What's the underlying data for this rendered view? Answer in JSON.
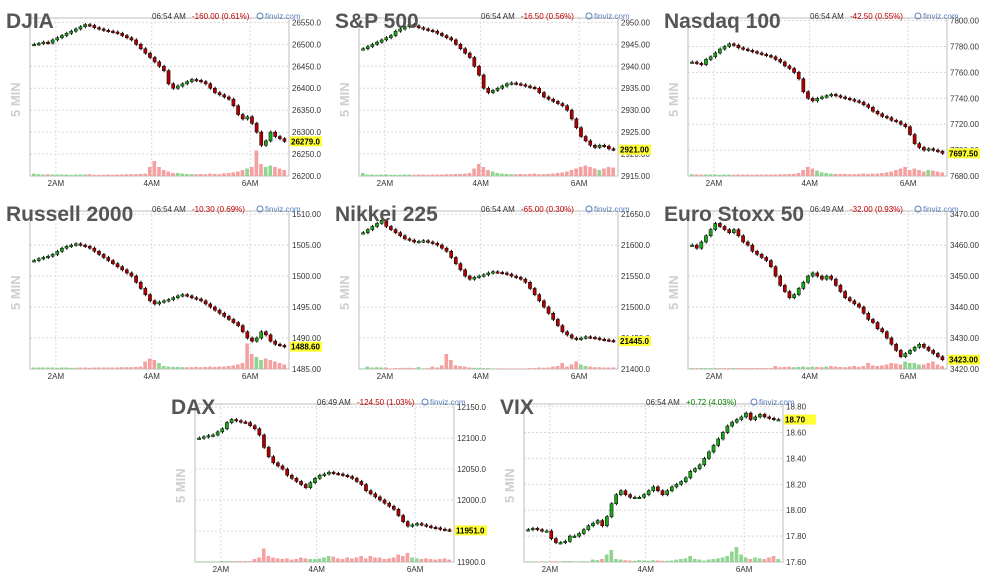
{
  "panels": [
    {
      "id": "djia",
      "title": "DJIA",
      "time": "06:54 AM",
      "change": "-160.00 (0.61%)",
      "change_dir": "neg",
      "source": "finviz.com",
      "interval": "5 MIN",
      "last_label": "26279.0",
      "colors": {
        "up": "#1aa81a",
        "down": "#b00000",
        "vol_up": "#8fd48f",
        "vol_down": "#f5a0a0",
        "last_bg": "#ffff33"
      }
    },
    {
      "id": "sp500",
      "title": "S&P 500",
      "time": "06:54 AM",
      "change": "-16.50 (0.56%)",
      "change_dir": "neg",
      "source": "finviz.com",
      "interval": "5 MIN",
      "last_label": "2921.00"
    },
    {
      "id": "nasdaq100",
      "title": "Nasdaq 100",
      "time": "06:54 AM",
      "change": "-42.50 (0.55%)",
      "change_dir": "neg",
      "source": "finviz.com",
      "interval": "5 MIN",
      "last_label": "7697.50"
    },
    {
      "id": "russell2000",
      "title": "Russell 2000",
      "time": "06:54 AM",
      "change": "-10.30 (0.69%)",
      "change_dir": "neg",
      "source": "finviz.com",
      "interval": "5 MIN",
      "last_label": "1488.60"
    },
    {
      "id": "nikkei225",
      "title": "Nikkei 225",
      "time": "06:54 AM",
      "change": "-65.00 (0.30%)",
      "change_dir": "neg",
      "source": "finviz.com",
      "interval": "5 MIN",
      "last_label": "21445.0"
    },
    {
      "id": "eurostoxx50",
      "title": "Euro Stoxx 50",
      "time": "06:49 AM",
      "change": "-32.00 (0.93%)",
      "change_dir": "neg",
      "source": "finviz.com",
      "interval": "5 MIN",
      "last_label": "3423.00"
    },
    {
      "id": "dax",
      "title": "DAX",
      "time": "06:49 AM",
      "change": "-124.50 (1.03%)",
      "change_dir": "neg",
      "source": "finviz.com",
      "interval": "5 MIN",
      "last_label": "11951.0"
    },
    {
      "id": "vix",
      "title": "VIX",
      "time": "06:54 AM",
      "change": "+0.72 (4.03%)",
      "change_dir": "pos",
      "source": "finviz.com",
      "interval": "5 MIN",
      "last_label": "18.70"
    }
  ],
  "chart_data": [
    {
      "type": "candlestick",
      "panel": "djia",
      "title": "DJIA",
      "x_ticks": [
        "2AM",
        "4AM",
        "6AM"
      ],
      "y_ticks": [
        "26550.0",
        "26500.0",
        "26450.0",
        "26400.0",
        "26350.0",
        "26300.0",
        "26250.0",
        "26200.0"
      ],
      "ylim": [
        26200,
        26560
      ],
      "close": [
        26500,
        26502,
        26505,
        26503,
        26510,
        26515,
        26520,
        26525,
        26530,
        26535,
        26540,
        26545,
        26543,
        26538,
        26535,
        26532,
        26530,
        26528,
        26525,
        26520,
        26515,
        26510,
        26500,
        26490,
        26480,
        26470,
        26460,
        26450,
        26440,
        26410,
        26400,
        26405,
        26410,
        26415,
        26420,
        26418,
        26415,
        26410,
        26400,
        26390,
        26385,
        26380,
        26375,
        26360,
        26340,
        26330,
        26335,
        26320,
        26300,
        26270,
        26280,
        26300,
        26290,
        26285,
        26279
      ],
      "volume": [
        0.08,
        0.06,
        0.05,
        0.06,
        0.05,
        0.05,
        0.05,
        0.05,
        0.04,
        0.05,
        0.05,
        0.05,
        0.06,
        0.04,
        0.04,
        0.04,
        0.05,
        0.04,
        0.05,
        0.05,
        0.06,
        0.06,
        0.06,
        0.07,
        0.08,
        0.3,
        0.5,
        0.3,
        0.2,
        0.15,
        0.1,
        0.1,
        0.08,
        0.07,
        0.06,
        0.06,
        0.07,
        0.06,
        0.08,
        0.07,
        0.06,
        0.09,
        0.1,
        0.12,
        0.15,
        0.2,
        0.25,
        0.3,
        0.85,
        0.4,
        0.3,
        0.35,
        0.3,
        0.25,
        0.2
      ],
      "last": 26279.0
    },
    {
      "type": "candlestick",
      "panel": "sp500",
      "title": "S&P 500",
      "x_ticks": [
        "2AM",
        "4AM",
        "6AM"
      ],
      "y_ticks": [
        "2950.00",
        "2945.00",
        "2940.00",
        "2935.00",
        "2930.00",
        "2925.00",
        "2920.00",
        "2915.00"
      ],
      "ylim": [
        2915,
        2951
      ],
      "close": [
        2944,
        2944.5,
        2945,
        2945.5,
        2946,
        2946.5,
        2947,
        2948,
        2948.5,
        2949,
        2949.5,
        2949.2,
        2948.8,
        2948.5,
        2948.2,
        2948,
        2947.5,
        2947,
        2946.5,
        2946,
        2945,
        2944,
        2943,
        2942,
        2940,
        2938,
        2935,
        2934,
        2934.5,
        2935,
        2935.5,
        2936,
        2936.2,
        2936,
        2935.8,
        2935.5,
        2935.2,
        2935,
        2934,
        2933,
        2932.5,
        2932,
        2931.5,
        2931,
        2930,
        2928,
        2926,
        2924,
        2923,
        2922,
        2921.5,
        2922,
        2921.8,
        2921.2,
        2921
      ],
      "volume": [
        0.1,
        0.05,
        0.05,
        0.04,
        0.05,
        0.05,
        0.04,
        0.04,
        0.04,
        0.05,
        0.05,
        0.04,
        0.05,
        0.05,
        0.04,
        0.05,
        0.05,
        0.05,
        0.06,
        0.06,
        0.07,
        0.07,
        0.08,
        0.1,
        0.25,
        0.4,
        0.3,
        0.2,
        0.15,
        0.1,
        0.08,
        0.07,
        0.06,
        0.06,
        0.07,
        0.06,
        0.07,
        0.08,
        0.06,
        0.06,
        0.07,
        0.08,
        0.1,
        0.12,
        0.15,
        0.2,
        0.25,
        0.3,
        0.35,
        0.3,
        0.25,
        0.2,
        0.25,
        0.3,
        0.28
      ],
      "last": 2921.0
    },
    {
      "type": "candlestick",
      "panel": "nasdaq100",
      "title": "Nasdaq 100",
      "x_ticks": [
        "2AM",
        "4AM",
        "6AM"
      ],
      "y_ticks": [
        "7800.00",
        "7780.00",
        "7760.00",
        "7740.00",
        "7720.00",
        "7700.00",
        "7680.00"
      ],
      "ylim": [
        7680,
        7802
      ],
      "close": [
        7768,
        7767,
        7766,
        7770,
        7772,
        7775,
        7778,
        7780,
        7782,
        7781,
        7779,
        7778,
        7777,
        7776,
        7775,
        7774,
        7773,
        7772,
        7770,
        7768,
        7765,
        7763,
        7760,
        7755,
        7745,
        7740,
        7738,
        7740,
        7741,
        7742,
        7743,
        7742,
        7741,
        7740,
        7739,
        7738,
        7737,
        7735,
        7733,
        7730,
        7728,
        7726,
        7725,
        7723,
        7722,
        7720,
        7718,
        7712,
        7705,
        7702,
        7700,
        7701,
        7700,
        7699,
        7697.5
      ],
      "volume": [
        0.06,
        0.05,
        0.05,
        0.05,
        0.05,
        0.05,
        0.04,
        0.05,
        0.05,
        0.04,
        0.05,
        0.05,
        0.05,
        0.04,
        0.05,
        0.05,
        0.05,
        0.05,
        0.05,
        0.06,
        0.06,
        0.07,
        0.07,
        0.1,
        0.2,
        0.3,
        0.25,
        0.18,
        0.12,
        0.1,
        0.08,
        0.07,
        0.07,
        0.07,
        0.06,
        0.06,
        0.07,
        0.08,
        0.07,
        0.08,
        0.08,
        0.1,
        0.12,
        0.15,
        0.2,
        0.25,
        0.3,
        0.2,
        0.25,
        0.2,
        0.15,
        0.2,
        0.18,
        0.15,
        0.12
      ],
      "last": 7697.5
    },
    {
      "type": "candlestick",
      "panel": "russell2000",
      "title": "Russell 2000",
      "x_ticks": [
        "2AM",
        "4AM",
        "6AM"
      ],
      "y_ticks": [
        "1510.00",
        "1505.00",
        "1500.00",
        "1495.00",
        "1490.00",
        "1485.00"
      ],
      "ylim": [
        1485,
        1510.5
      ],
      "close": [
        1502.5,
        1502.8,
        1503,
        1503.2,
        1503.5,
        1504,
        1504.5,
        1504.8,
        1505,
        1505.2,
        1505,
        1504.8,
        1504.5,
        1504,
        1503.5,
        1503,
        1502.5,
        1502,
        1501.5,
        1501,
        1500.5,
        1500,
        1499,
        1498,
        1497,
        1496,
        1495.5,
        1495.8,
        1496,
        1496.2,
        1496.5,
        1496.8,
        1497,
        1496.8,
        1496.5,
        1496.3,
        1496,
        1495.5,
        1495,
        1494.5,
        1494,
        1493.5,
        1493,
        1492.5,
        1492,
        1491,
        1490,
        1489.5,
        1490,
        1491,
        1490.5,
        1489.5,
        1489,
        1488.8,
        1488.6
      ],
      "volume": [
        0.05,
        0.05,
        0.05,
        0.05,
        0.05,
        0.04,
        0.05,
        0.05,
        0.04,
        0.04,
        0.05,
        0.05,
        0.04,
        0.05,
        0.05,
        0.05,
        0.05,
        0.05,
        0.05,
        0.06,
        0.06,
        0.06,
        0.07,
        0.08,
        0.25,
        0.35,
        0.3,
        0.2,
        0.1,
        0.08,
        0.07,
        0.07,
        0.06,
        0.06,
        0.06,
        0.07,
        0.06,
        0.07,
        0.08,
        0.07,
        0.08,
        0.08,
        0.1,
        0.12,
        0.15,
        0.2,
        0.85,
        0.5,
        0.4,
        0.3,
        0.35,
        0.3,
        0.25,
        0.2,
        0.15
      ],
      "last": 1488.6
    },
    {
      "type": "candlestick",
      "panel": "nikkei225",
      "title": "Nikkei 225",
      "x_ticks": [
        "2AM",
        "4AM",
        "6AM"
      ],
      "y_ticks": [
        "21650.0",
        "21600.0",
        "21550.0",
        "21500.0",
        "21450.0",
        "21400.0"
      ],
      "ylim": [
        21400,
        21655
      ],
      "close": [
        21620,
        21625,
        21630,
        21635,
        21640,
        21630,
        21625,
        21620,
        21615,
        21610,
        21608,
        21605,
        21606,
        21607,
        21605,
        21603,
        21600,
        21595,
        21590,
        21580,
        21570,
        21560,
        21550,
        21545,
        21548,
        21550,
        21552,
        21555,
        21557,
        21556,
        21555,
        21553,
        21550,
        21548,
        21545,
        21540,
        21530,
        21520,
        21510,
        21500,
        21490,
        21480,
        21470,
        21460,
        21455,
        21450,
        21448,
        21450,
        21452,
        21451,
        21450,
        21448,
        21447,
        21446,
        21445
      ],
      "volume": [
        0.02,
        0.08,
        0.05,
        0.06,
        0.05,
        0.05,
        0.02,
        0.03,
        0.03,
        0.04,
        0.04,
        0.03,
        0.06,
        0.02,
        0.03,
        0.08,
        0.05,
        0.12,
        0.5,
        0.3,
        0.12,
        0.1,
        0.08,
        0.05,
        0.04,
        0.04,
        0.03,
        0.03,
        0.02,
        0.02,
        0.02,
        0.02,
        0.02,
        0.02,
        0.02,
        0.02,
        0.03,
        0.03,
        0.05,
        0.04,
        0.05,
        0.08,
        0.1,
        0.2,
        0.08,
        0.15,
        0.25,
        0.15,
        0.1,
        0.08,
        0.06,
        0.06,
        0.05,
        0.05,
        0.05
      ],
      "last": 21445.0
    },
    {
      "type": "candlestick",
      "panel": "eurostoxx50",
      "title": "Euro Stoxx 50",
      "x_ticks": [
        "2AM",
        "4AM",
        "6AM"
      ],
      "y_ticks": [
        "3470.00",
        "3460.00",
        "3450.00",
        "3440.00",
        "3430.00",
        "3420.00"
      ],
      "ylim": [
        3420,
        3471
      ],
      "close": [
        3460,
        3459,
        3461,
        3463,
        3465,
        3467,
        3466,
        3465,
        3464,
        3465,
        3463,
        3461,
        3460,
        3458,
        3457,
        3456,
        3455,
        3453,
        3450,
        3447,
        3445,
        3443,
        3444,
        3446,
        3448,
        3450,
        3451,
        3450,
        3449,
        3450,
        3449,
        3447,
        3445,
        3443,
        3442,
        3441,
        3440,
        3438,
        3436,
        3435,
        3433,
        3432,
        3430,
        3428,
        3426,
        3424,
        3425,
        3426,
        3427,
        3428,
        3427,
        3426,
        3425,
        3424,
        3423
      ],
      "volume": [
        0.03,
        0.03,
        0.03,
        0.03,
        0.03,
        0.03,
        0.03,
        0.03,
        0.03,
        0.03,
        0.03,
        0.03,
        0.03,
        0.03,
        0.03,
        0.03,
        0.03,
        0.03,
        0.1,
        0.06,
        0.07,
        0.08,
        0.06,
        0.07,
        0.08,
        0.06,
        0.08,
        0.07,
        0.06,
        0.08,
        0.1,
        0.08,
        0.07,
        0.06,
        0.08,
        0.1,
        0.07,
        0.1,
        0.2,
        0.12,
        0.1,
        0.12,
        0.15,
        0.2,
        0.18,
        0.15,
        0.25,
        0.2,
        0.2,
        0.15,
        0.15,
        0.2,
        0.25,
        0.15,
        0.1
      ],
      "last": 3423.0
    },
    {
      "type": "candlestick",
      "panel": "dax",
      "title": "DAX",
      "x_ticks": [
        "2AM",
        "4AM",
        "6AM"
      ],
      "y_ticks": [
        "12150.0",
        "12100.0",
        "12050.0",
        "12000.0",
        "11950.0",
        "11900.0"
      ],
      "ylim": [
        11900,
        12155
      ],
      "close": [
        12100,
        12102,
        12104,
        12105,
        12110,
        12115,
        12125,
        12130,
        12128,
        12126,
        12125,
        12120,
        12115,
        12105,
        12085,
        12070,
        12060,
        12055,
        12050,
        12040,
        12035,
        12030,
        12025,
        12020,
        12028,
        12035,
        12040,
        12042,
        12045,
        12043,
        12042,
        12040,
        12038,
        12035,
        12030,
        12025,
        12015,
        12010,
        12005,
        12000,
        11995,
        11990,
        11985,
        11975,
        11965,
        11958,
        11960,
        11962,
        11960,
        11958,
        11956,
        11955,
        11953,
        11952,
        11951
      ],
      "volume": [
        0.02,
        0.02,
        0.02,
        0.02,
        0.02,
        0.03,
        0.03,
        0.03,
        0.03,
        0.03,
        0.03,
        0.03,
        0.1,
        0.15,
        0.45,
        0.2,
        0.15,
        0.12,
        0.1,
        0.12,
        0.08,
        0.1,
        0.15,
        0.12,
        0.1,
        0.1,
        0.12,
        0.15,
        0.2,
        0.18,
        0.12,
        0.1,
        0.15,
        0.12,
        0.15,
        0.2,
        0.12,
        0.2,
        0.15,
        0.15,
        0.1,
        0.12,
        0.15,
        0.25,
        0.2,
        0.3,
        0.15,
        0.12,
        0.1,
        0.12,
        0.1,
        0.08,
        0.1,
        0.12,
        0.08
      ],
      "last": 11951.0
    },
    {
      "type": "candlestick",
      "panel": "vix",
      "title": "VIX",
      "x_ticks": [
        "2AM",
        "4AM",
        "6AM"
      ],
      "y_ticks": [
        "18.80",
        "18.60",
        "18.40",
        "18.20",
        "18.00",
        "17.80",
        "17.60"
      ],
      "ylim": [
        17.6,
        18.82
      ],
      "close": [
        17.85,
        17.86,
        17.85,
        17.84,
        17.84,
        17.78,
        17.75,
        17.75,
        17.76,
        17.8,
        17.8,
        17.82,
        17.85,
        17.88,
        17.9,
        17.92,
        17.88,
        17.95,
        18.05,
        18.12,
        18.15,
        18.12,
        18.1,
        18.1,
        18.1,
        18.12,
        18.15,
        18.18,
        18.15,
        18.12,
        18.15,
        18.18,
        18.2,
        18.22,
        18.25,
        18.3,
        18.32,
        18.35,
        18.4,
        18.45,
        18.5,
        18.55,
        18.6,
        18.65,
        18.68,
        18.7,
        18.72,
        18.75,
        18.7,
        18.72,
        18.74,
        18.72,
        18.71,
        18.7,
        18.7
      ],
      "volume": [
        0.02,
        0.02,
        0.02,
        0.02,
        0.02,
        0.02,
        0.03,
        0.02,
        0.03,
        0.03,
        0.02,
        0.02,
        0.03,
        0.02,
        0.08,
        0.06,
        0.1,
        0.25,
        0.4,
        0.1,
        0.08,
        0.06,
        0.05,
        0.04,
        0.06,
        0.05,
        0.04,
        0.06,
        0.05,
        0.04,
        0.04,
        0.05,
        0.08,
        0.1,
        0.12,
        0.2,
        0.1,
        0.08,
        0.05,
        0.08,
        0.1,
        0.12,
        0.15,
        0.2,
        0.35,
        0.5,
        0.25,
        0.15,
        0.1,
        0.15,
        0.12,
        0.1,
        0.15,
        0.2,
        0.1
      ],
      "last": 18.7
    }
  ]
}
